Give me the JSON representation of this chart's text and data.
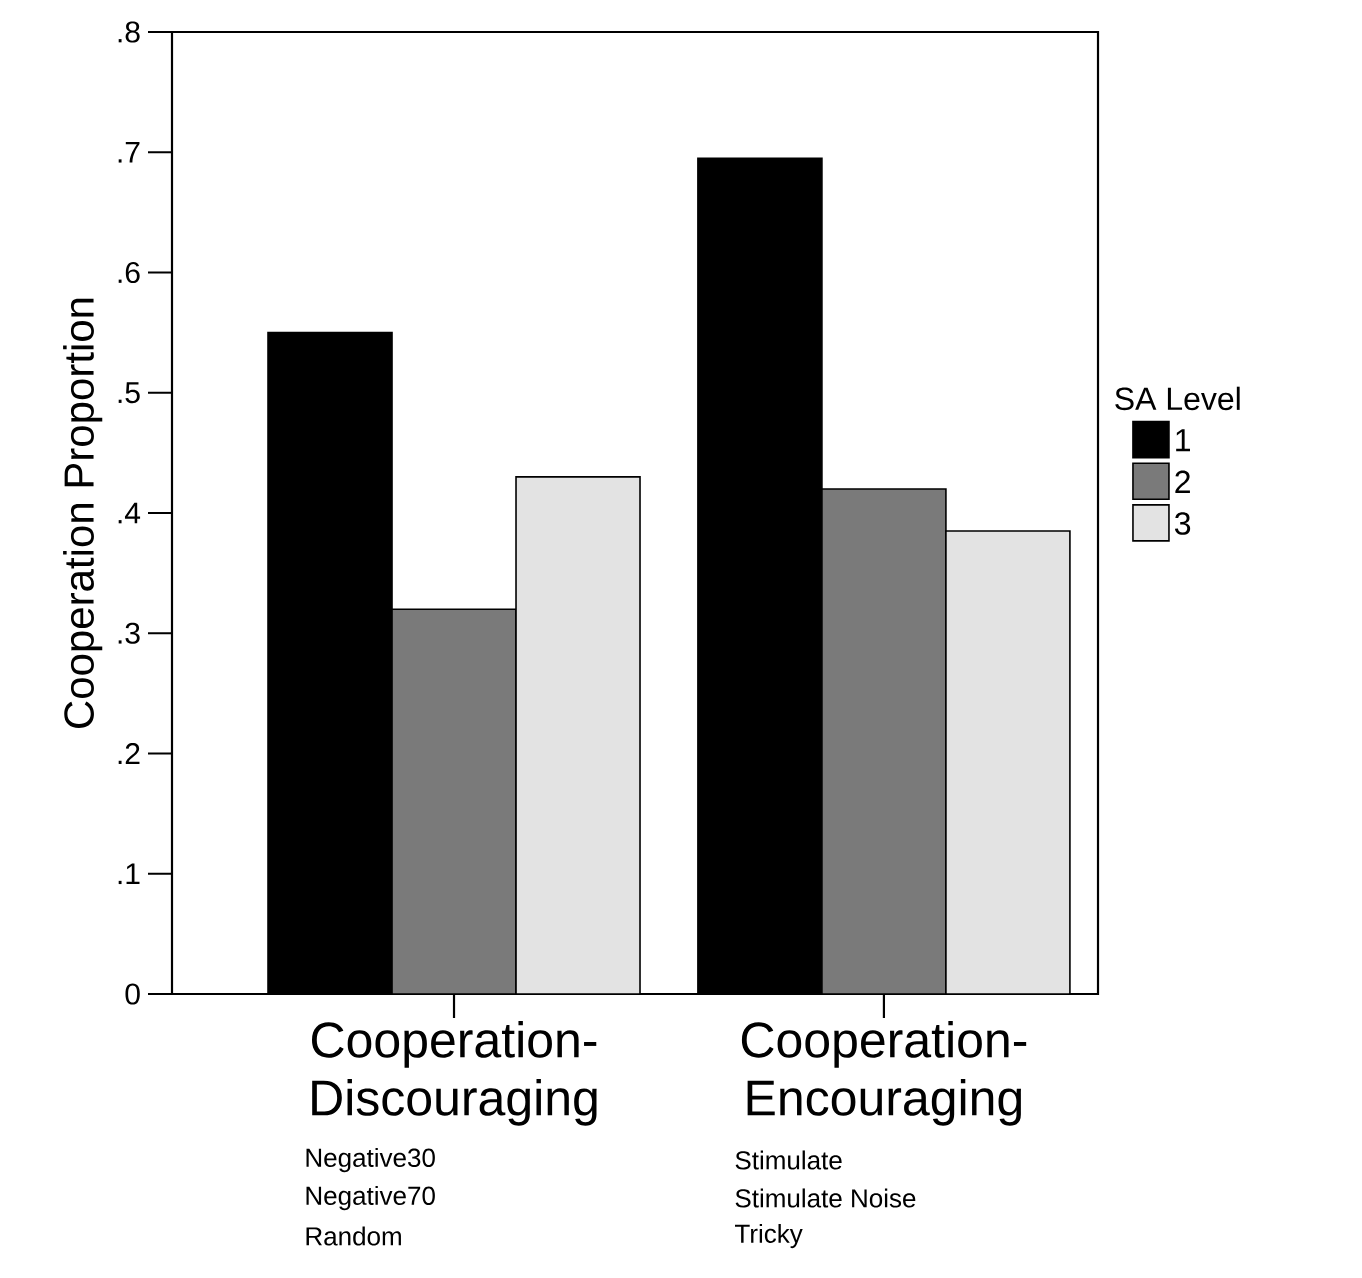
{
  "chart_data": {
    "type": "bar",
    "ylabel": "Cooperation Proportion",
    "legend_title": "SA Level",
    "categories": [
      "Cooperation-Discouraging",
      "Cooperation-Encouraging"
    ],
    "series": [
      {
        "name": "1",
        "color": "#000000",
        "values": [
          0.55,
          0.695
        ]
      },
      {
        "name": "2",
        "color": "#7a7a7a",
        "values": [
          0.32,
          0.42
        ]
      },
      {
        "name": "3",
        "color": "#e3e3e3",
        "values": [
          0.43,
          0.385
        ]
      }
    ],
    "ylim": [
      0,
      0.8
    ],
    "yticks": [
      0,
      {
        "value": 0.1,
        "label": ".1"
      },
      {
        "value": 0.2,
        "label": ".2"
      },
      {
        "value": 0.3,
        "label": ".3"
      },
      {
        "value": 0.4,
        "label": ".4"
      },
      {
        "value": 0.5,
        "label": ".5"
      },
      {
        "value": 0.6,
        "label": ".6"
      },
      {
        "value": 0.7,
        "label": ".7"
      },
      {
        "value": 0.8,
        "label": ".8"
      }
    ],
    "annotations": [
      "Negative30",
      "Negative70",
      "Random",
      "Stimulate",
      "Stimulate Noise",
      "Tricky"
    ],
    "legend": "right",
    "grid": false
  }
}
